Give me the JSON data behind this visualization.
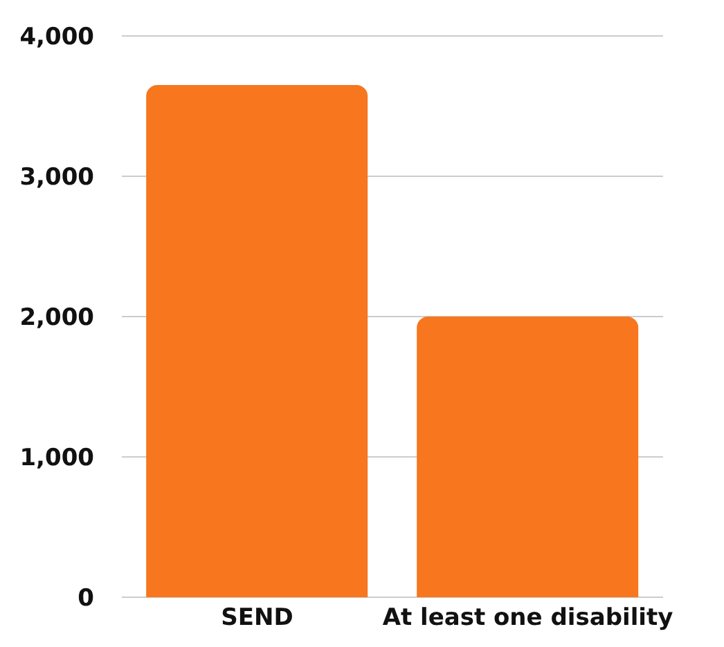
{
  "chart_data": {
    "type": "bar",
    "categories": [
      "SEND",
      "At least one disability"
    ],
    "values": [
      3650,
      2000
    ],
    "color": "#f7761e",
    "ylim": [
      0,
      4000
    ],
    "yticks": [
      0,
      {
        "value": 1000,
        "label": "1,000"
      },
      {
        "value": 2000,
        "label": "2,000"
      },
      {
        "value": 3000,
        "label": "3,000"
      },
      {
        "value": 4000,
        "label": "4,000"
      }
    ],
    "grid": "y"
  }
}
